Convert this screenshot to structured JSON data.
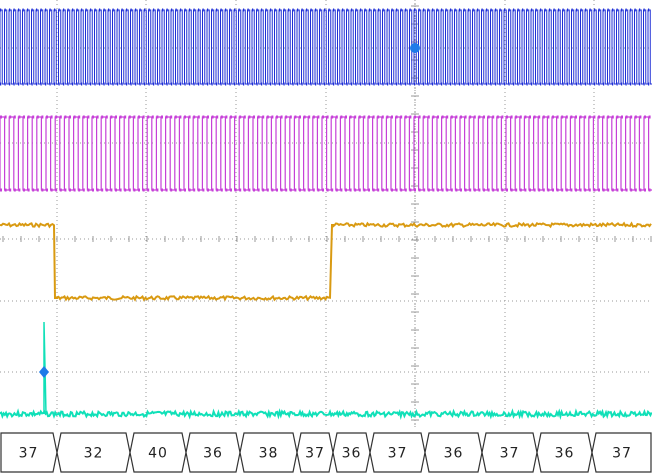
{
  "colors": {
    "background": "#ffffff",
    "grid": "#9a9a9a",
    "ch1": "#1f2fd6",
    "ch2": "#c640d8",
    "ch3": "#d99a12",
    "ch4": "#10e0b8",
    "trigger_marker": "#1e7be8",
    "decode_outline": "#333333"
  },
  "channels": [
    {
      "id": "ch1",
      "name": "",
      "signal": "clock"
    },
    {
      "id": "ch2",
      "name": "",
      "signal": "clock"
    },
    {
      "id": "ch3",
      "name": "",
      "signal": "enable"
    },
    {
      "id": "ch4",
      "name": "",
      "signal": "pulse"
    }
  ],
  "markers": {
    "trigger_icon": "circle-marker-icon",
    "ch4_level_icon": "diamond-marker-icon"
  },
  "decode": {
    "bytes": [
      "37",
      "32",
      "40",
      "36",
      "38",
      "37",
      "36",
      "37",
      "36",
      "37",
      "36",
      "37"
    ]
  }
}
